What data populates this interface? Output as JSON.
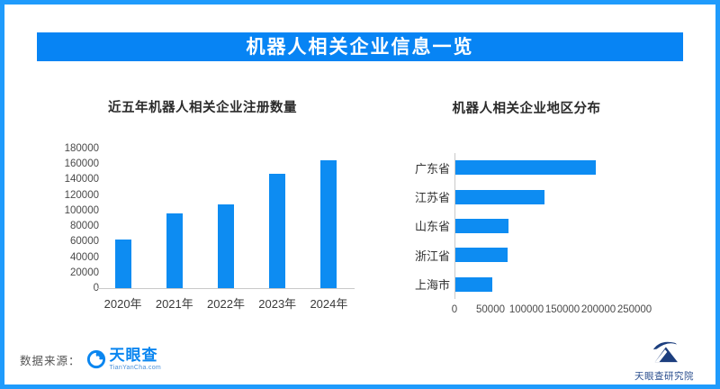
{
  "page": {
    "title": "机器人相关企业信息一览"
  },
  "colors": {
    "frame_border": "#1f9bfc",
    "banner_bg": "#0784f4",
    "bar_blue": "#0d8cf2",
    "tyc_blue": "#0a86f0",
    "institute_blue": "#1c3e7e"
  },
  "footer": {
    "source_label": "数据来源：",
    "tyc_name": "天眼查",
    "tyc_domain": "TianYanCha.com",
    "institute": "天眼查研究院"
  },
  "chart_data": [
    {
      "type": "bar",
      "orientation": "vertical",
      "title": "近五年机器人相关企业注册数量",
      "categories": [
        "2020年",
        "2021年",
        "2022年",
        "2023年",
        "2024年"
      ],
      "values": [
        63000,
        96000,
        108000,
        148000,
        165000
      ],
      "ylim": [
        0,
        180000
      ],
      "y_ticks": [
        0,
        20000,
        40000,
        60000,
        80000,
        100000,
        120000,
        140000,
        160000,
        180000
      ],
      "grid": false,
      "bar_color": "#0d8cf2"
    },
    {
      "type": "bar",
      "orientation": "horizontal",
      "title": "机器人相关企业地区分布",
      "categories": [
        "广东省",
        "江苏省",
        "山东省",
        "浙江省",
        "上海市"
      ],
      "values": [
        195000,
        124000,
        74000,
        72000,
        51000
      ],
      "xlim": [
        0,
        250000
      ],
      "x_ticks": [
        0,
        50000,
        100000,
        150000,
        200000,
        250000
      ],
      "grid": false,
      "bar_color": "#0d8cf2"
    }
  ]
}
